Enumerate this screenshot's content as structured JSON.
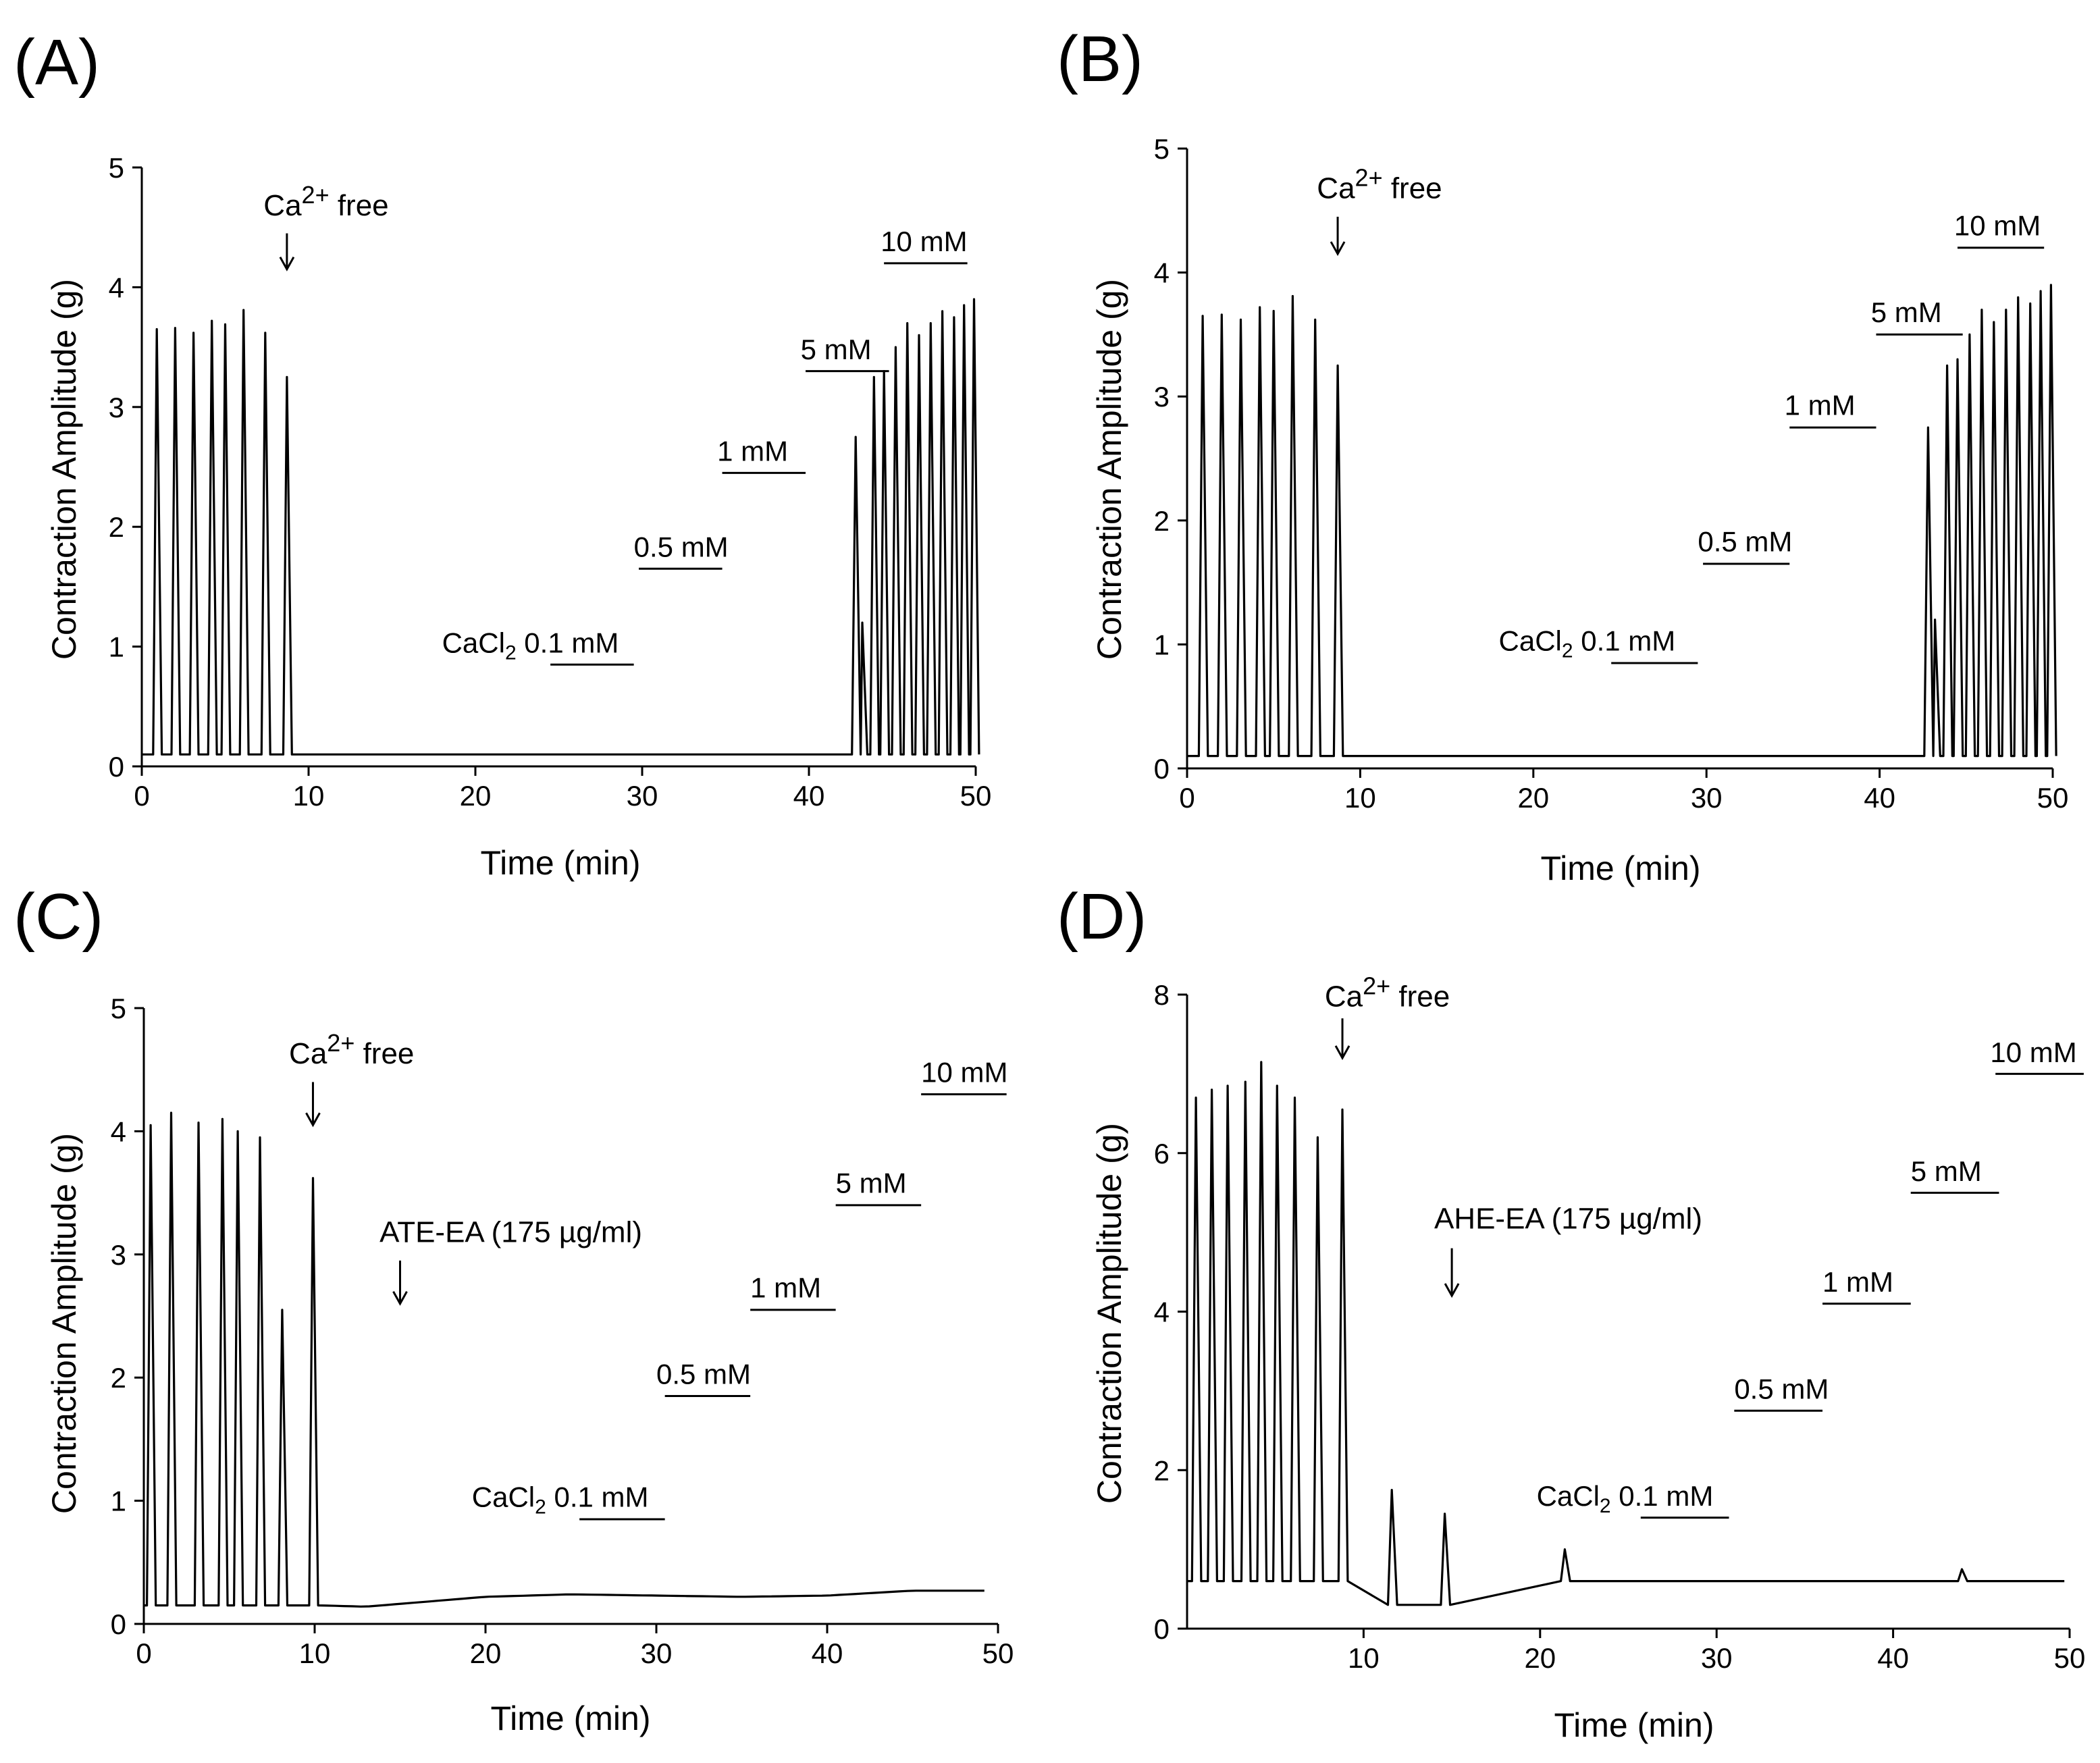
{
  "figure": {
    "background": "#ffffff",
    "trace_color": "#000000"
  },
  "chart_data": [
    {
      "type": "line",
      "panel_label": "(A)",
      "xlabel": "Time (min)",
      "ylabel": "Contraction Amplitude (g)",
      "xlim": [
        0,
        50
      ],
      "ylim": [
        0,
        5
      ],
      "xticks": [
        0,
        10,
        20,
        30,
        40,
        50
      ],
      "yticks": [
        0,
        1,
        2,
        3,
        4,
        5
      ],
      "baseline": 0.1,
      "rest_level": 0.05,
      "wash_time": 9.6,
      "peaks": [
        [
          0.9,
          3.65
        ],
        [
          2.0,
          3.66
        ],
        [
          3.1,
          3.62
        ],
        [
          4.2,
          3.72
        ],
        [
          5.0,
          3.69
        ],
        [
          6.1,
          3.81
        ],
        [
          7.4,
          3.62
        ],
        [
          8.7,
          3.25
        ],
        [
          42.8,
          2.75
        ],
        [
          43.2,
          1.2
        ],
        [
          43.9,
          3.25
        ],
        [
          44.5,
          3.3
        ],
        [
          45.2,
          3.5
        ],
        [
          45.9,
          3.7
        ],
        [
          46.6,
          3.6
        ],
        [
          47.3,
          3.7
        ],
        [
          48.0,
          3.8
        ],
        [
          48.7,
          3.75
        ],
        [
          49.3,
          3.85
        ],
        [
          49.9,
          3.9
        ]
      ],
      "arrows": [
        {
          "x": 8.7,
          "y_tip": 4.15,
          "y_tail": 4.45,
          "label_main": "Ca",
          "label_sup": "2+",
          "label_tail": " free",
          "label_x": 7.3,
          "label_y": 4.6
        }
      ],
      "annotations": [
        {
          "label": "CaCl",
          "sub": "2",
          "rest": " 0.1 mM",
          "x0": 24.5,
          "x1": 29.5,
          "y": 0.85,
          "label_x": 18.0,
          "label_y": 0.95
        },
        {
          "label": "0.5 mM",
          "x0": 29.8,
          "x1": 34.8,
          "y": 1.65,
          "label_x": 29.5,
          "label_y": 1.75
        },
        {
          "label": "1 mM",
          "x0": 34.8,
          "x1": 39.8,
          "y": 2.45,
          "label_x": 34.5,
          "label_y": 2.55
        },
        {
          "label": "5 mM",
          "x0": 39.8,
          "x1": 44.8,
          "y": 3.3,
          "label_x": 39.5,
          "label_y": 3.4
        },
        {
          "label": "10 mM",
          "x0": 44.5,
          "x1": 49.5,
          "y": 4.2,
          "label_x": 44.3,
          "label_y": 4.3
        }
      ]
    },
    {
      "type": "line",
      "panel_label": "(B)",
      "xlabel": "Time (min)",
      "ylabel": "Contraction Amplitude (g)",
      "xlim": [
        0,
        50
      ],
      "ylim": [
        0,
        5
      ],
      "xticks": [
        0,
        10,
        20,
        30,
        40,
        50
      ],
      "yticks": [
        0,
        1,
        2,
        3,
        4,
        5
      ],
      "baseline": 0.1,
      "rest_level": 0.05,
      "wash_time": 9.6,
      "peaks": [
        [
          0.9,
          3.65
        ],
        [
          2.0,
          3.66
        ],
        [
          3.1,
          3.62
        ],
        [
          4.2,
          3.72
        ],
        [
          5.0,
          3.69
        ],
        [
          6.1,
          3.81
        ],
        [
          7.4,
          3.62
        ],
        [
          8.7,
          3.25
        ],
        [
          42.8,
          2.75
        ],
        [
          43.2,
          1.2
        ],
        [
          43.9,
          3.25
        ],
        [
          44.5,
          3.3
        ],
        [
          45.2,
          3.5
        ],
        [
          45.9,
          3.7
        ],
        [
          46.6,
          3.6
        ],
        [
          47.3,
          3.7
        ],
        [
          48.0,
          3.8
        ],
        [
          48.7,
          3.75
        ],
        [
          49.3,
          3.85
        ],
        [
          49.9,
          3.9
        ]
      ],
      "arrows": [
        {
          "x": 8.7,
          "y_tip": 4.15,
          "y_tail": 4.45,
          "label_main": "Ca",
          "label_sup": "2+",
          "label_tail": " free",
          "label_x": 7.5,
          "label_y": 4.6
        }
      ],
      "annotations": [
        {
          "label": "CaCl",
          "sub": "2",
          "rest": " 0.1 mM",
          "x0": 24.5,
          "x1": 29.5,
          "y": 0.85,
          "label_x": 18.0,
          "label_y": 0.95
        },
        {
          "label": "0.5 mM",
          "x0": 29.8,
          "x1": 34.8,
          "y": 1.65,
          "label_x": 29.5,
          "label_y": 1.75
        },
        {
          "label": "1 mM",
          "x0": 34.8,
          "x1": 39.8,
          "y": 2.75,
          "label_x": 34.5,
          "label_y": 2.85
        },
        {
          "label": "5 mM",
          "x0": 39.8,
          "x1": 44.8,
          "y": 3.5,
          "label_x": 39.5,
          "label_y": 3.6
        },
        {
          "label": "10 mM",
          "x0": 44.5,
          "x1": 49.5,
          "y": 4.2,
          "label_x": 44.3,
          "label_y": 4.3
        }
      ]
    },
    {
      "type": "line",
      "panel_label": "(C)",
      "xlabel": "Time (min)",
      "ylabel": "Contraction Amplitude (g)",
      "xlim": [
        0,
        50
      ],
      "ylim": [
        0,
        5
      ],
      "xticks": [
        0,
        10,
        20,
        30,
        40,
        50
      ],
      "yticks": [
        0,
        1,
        2,
        3,
        4,
        5
      ],
      "baseline": 0.15,
      "rest_level": 0.15,
      "wash_time": 10.4,
      "drift": [
        [
          10.4,
          0.15
        ],
        [
          13,
          0.14
        ],
        [
          20,
          0.22
        ],
        [
          25,
          0.24
        ],
        [
          30,
          0.23
        ],
        [
          35,
          0.22
        ],
        [
          40,
          0.23
        ],
        [
          45,
          0.27
        ],
        [
          49.5,
          0.27
        ]
      ],
      "peaks": [
        [
          0.4,
          4.05
        ],
        [
          1.6,
          4.15
        ],
        [
          3.2,
          4.07
        ],
        [
          4.6,
          4.1
        ],
        [
          5.5,
          4.0
        ],
        [
          6.8,
          3.95
        ],
        [
          8.1,
          2.55
        ],
        [
          9.9,
          3.62
        ]
      ],
      "arrows": [
        {
          "x": 9.9,
          "y_tip": 4.05,
          "y_tail": 4.4,
          "label_main": "Ca",
          "label_sup": "2+",
          "label_tail": " free",
          "label_x": 8.5,
          "label_y": 4.55
        },
        {
          "x": 15.0,
          "y_tip": 2.6,
          "y_tail": 2.95,
          "label_main": "ATE-EA (175 µg/ml)",
          "label_x": 13.8,
          "label_y": 3.1
        }
      ],
      "annotations": [
        {
          "label": "CaCl",
          "sub": "2",
          "rest": " 0.1 mM",
          "x0": 25.5,
          "x1": 30.5,
          "y": 0.85,
          "label_x": 19.2,
          "label_y": 0.95
        },
        {
          "label": "0.5 mM",
          "x0": 30.5,
          "x1": 35.5,
          "y": 1.85,
          "label_x": 30.0,
          "label_y": 1.95
        },
        {
          "label": "1 mM",
          "x0": 35.5,
          "x1": 40.5,
          "y": 2.55,
          "label_x": 35.5,
          "label_y": 2.65
        },
        {
          "label": "5 mM",
          "x0": 40.5,
          "x1": 45.5,
          "y": 3.4,
          "label_x": 40.5,
          "label_y": 3.5
        },
        {
          "label": "10 mM",
          "x0": 45.5,
          "x1": 50.5,
          "y": 4.3,
          "label_x": 45.5,
          "label_y": 4.4
        }
      ]
    },
    {
      "type": "line",
      "panel_label": "(D)",
      "xlabel": "Time (min)",
      "ylabel": "Contraction Amplitude (g)",
      "xlim": [
        0,
        50
      ],
      "ylim": [
        0,
        8
      ],
      "xticks": [
        10,
        20,
        30,
        40,
        50
      ],
      "yticks": [
        0,
        2,
        4,
        6,
        8
      ],
      "baseline": 0.6,
      "rest_level": 0.3,
      "wash_time": 9.6,
      "peaks": [
        [
          0.5,
          6.7
        ],
        [
          1.4,
          6.8
        ],
        [
          2.3,
          6.85
        ],
        [
          3.3,
          6.9
        ],
        [
          4.2,
          7.15
        ],
        [
          5.1,
          6.85
        ],
        [
          6.1,
          6.7
        ],
        [
          7.4,
          6.2
        ],
        [
          8.8,
          6.55
        ],
        [
          11.6,
          1.75
        ],
        [
          14.6,
          1.45
        ],
        [
          21.4,
          1.0
        ],
        [
          43.9,
          0.75
        ]
      ],
      "arrows": [
        {
          "x": 8.8,
          "y_tip": 7.2,
          "y_tail": 7.7,
          "label_main": "Ca",
          "label_sup": "2+",
          "label_tail": " free",
          "label_x": 7.8,
          "label_y": 7.85
        },
        {
          "x": 15.0,
          "y_tip": 4.2,
          "y_tail": 4.8,
          "label_main": "AHE-EA (175 µg/ml)",
          "label_x": 14.0,
          "label_y": 5.05
        }
      ],
      "annotations": [
        {
          "label": "CaCl",
          "sub": "2",
          "rest": " 0.1 mM",
          "x0": 25.7,
          "x1": 30.7,
          "y": 1.4,
          "label_x": 19.8,
          "label_y": 1.55
        },
        {
          "label": "0.5 mM",
          "x0": 31.0,
          "x1": 36.0,
          "y": 2.75,
          "label_x": 31.0,
          "label_y": 2.9
        },
        {
          "label": "1 mM",
          "x0": 36.0,
          "x1": 41.0,
          "y": 4.1,
          "label_x": 36.0,
          "label_y": 4.25
        },
        {
          "label": "5 mM",
          "x0": 41.0,
          "x1": 46.0,
          "y": 5.5,
          "label_x": 41.0,
          "label_y": 5.65
        },
        {
          "label": "10 mM",
          "x0": 45.8,
          "x1": 50.8,
          "y": 7.0,
          "label_x": 45.5,
          "label_y": 7.15
        }
      ]
    }
  ]
}
